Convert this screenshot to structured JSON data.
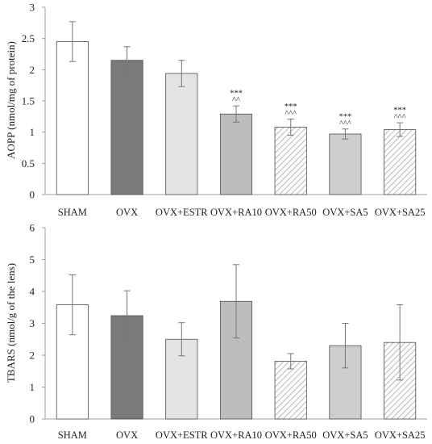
{
  "chart_data": [
    {
      "type": "bar",
      "ylabel": "AOPP (nmol/mg of protein)",
      "ylim": [
        0,
        3
      ],
      "yticks": [
        0,
        0.5,
        1,
        1.5,
        2,
        2.5,
        3
      ],
      "ytick_labels": [
        "0",
        "0.5",
        "1",
        "1.5",
        "2",
        "2.5",
        "3"
      ],
      "categories": [
        "SHAM",
        "OVX",
        "OVX+ESTR",
        "OVX+RA10",
        "OVX+RA50",
        "OVX+SA5",
        "OVX+SA25"
      ],
      "values": [
        2.45,
        2.15,
        1.94,
        1.29,
        1.08,
        0.97,
        1.04
      ],
      "errors": [
        0.32,
        0.22,
        0.21,
        0.13,
        0.13,
        0.08,
        0.11
      ],
      "annotations": [
        {
          "category": "OVX+RA10",
          "lines": [
            "***",
            "^^"
          ]
        },
        {
          "category": "OVX+RA50",
          "lines": [
            "***",
            "^^^"
          ]
        },
        {
          "category": "OVX+SA5",
          "lines": [
            "***",
            "^^^"
          ]
        },
        {
          "category": "OVX+SA25",
          "lines": [
            "***",
            "^^^"
          ]
        }
      ],
      "grid": false,
      "legend": "none"
    },
    {
      "type": "bar",
      "ylabel": "TBARS (nmol/g of the lens)",
      "ylim": [
        0,
        6
      ],
      "yticks": [
        0,
        1,
        2,
        3,
        4,
        5,
        6
      ],
      "ytick_labels": [
        "0",
        "1",
        "2",
        "3",
        "4",
        "5",
        "6"
      ],
      "categories": [
        "SHAM",
        "OVX",
        "OVX+ESTR",
        "OVX+RA10",
        "OVX+RA50",
        "OVX+SA5",
        "OVX+SA25"
      ],
      "values": [
        3.58,
        3.24,
        2.5,
        3.69,
        1.81,
        2.3,
        2.4
      ],
      "errors": [
        0.94,
        0.78,
        0.52,
        1.15,
        0.24,
        0.7,
        1.18
      ],
      "annotations": [],
      "grid": false,
      "legend": "none"
    }
  ],
  "colors": {
    "sham_fill": "#ffffff",
    "ovx_fill": "#7a7a7a",
    "estr_fill": "#e4e4e4",
    "ra10_fill": "#bdbdbd",
    "sa5_fill": "#cdcdcd",
    "hatch_stroke": "#9a9a9a",
    "bar_stroke": "#4d4d4d",
    "axis": "#a0a0a0",
    "error_bar": "#777777"
  },
  "bar_styles": [
    "sham_fill",
    "ovx_fill",
    "estr_fill",
    "ra10_fill",
    "hatch",
    "sa5_fill",
    "hatch"
  ]
}
